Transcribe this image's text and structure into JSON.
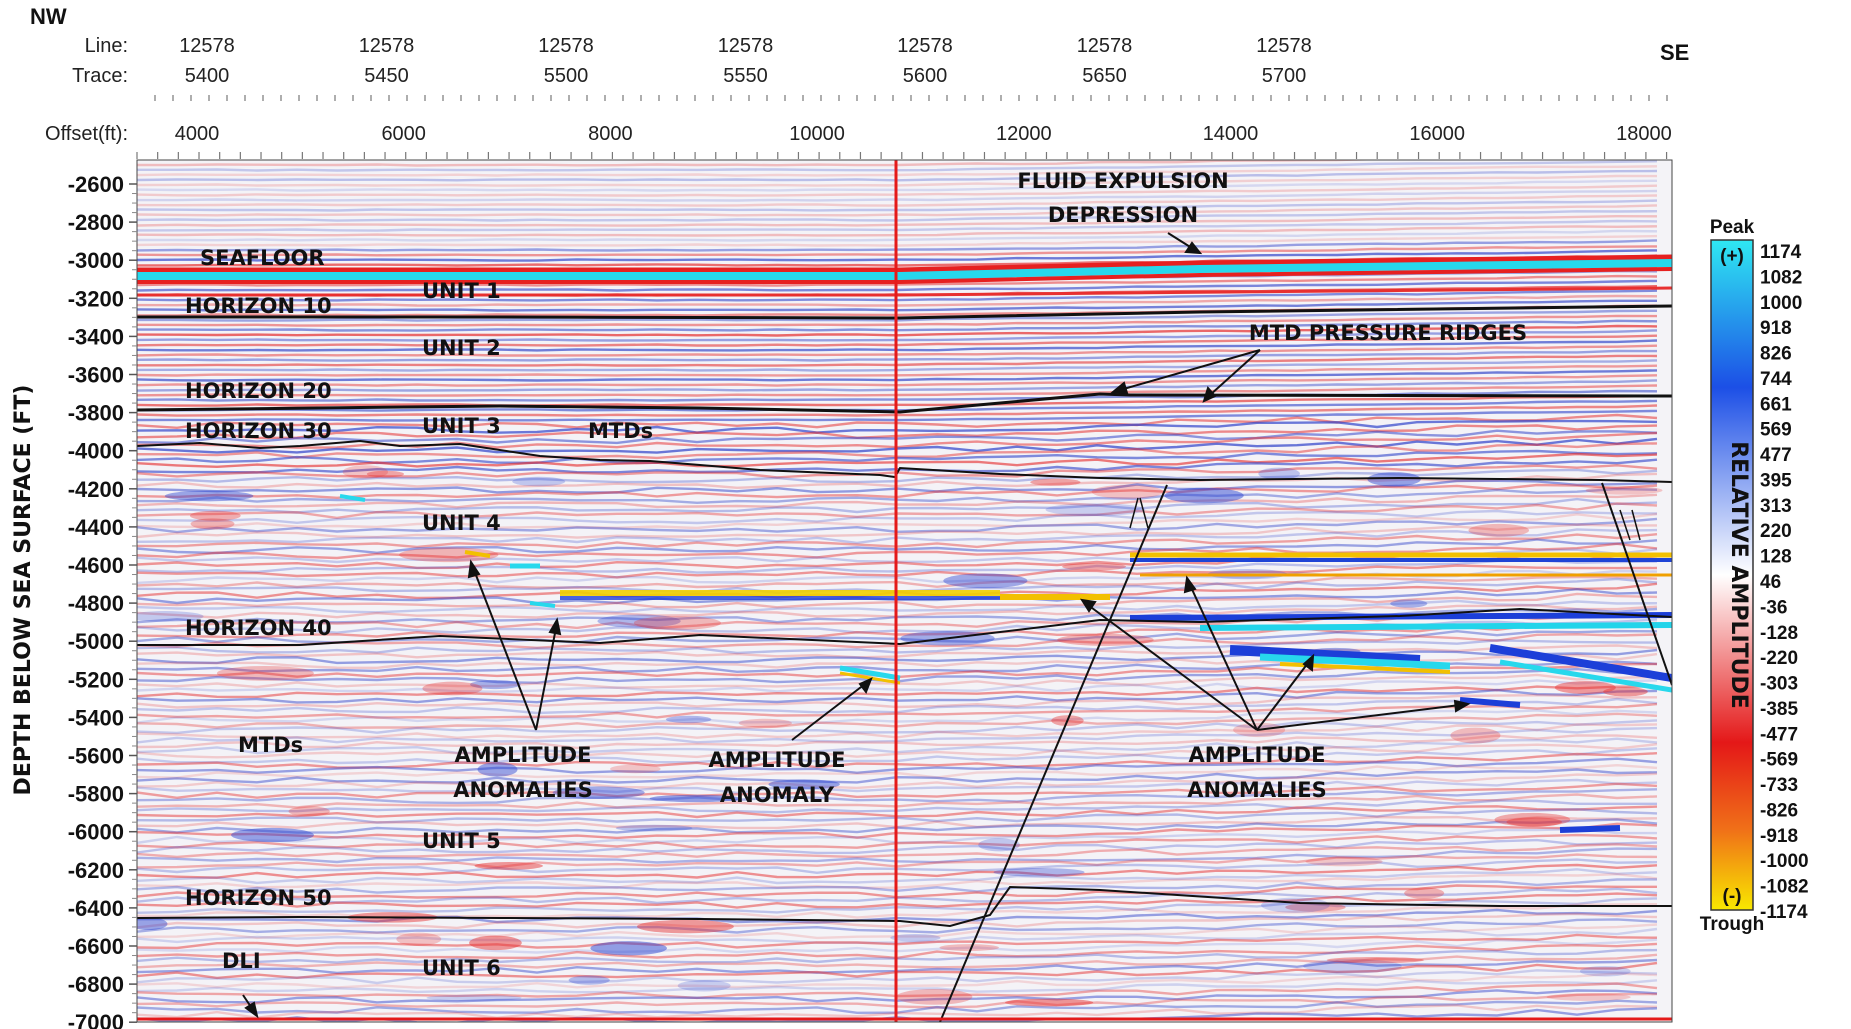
{
  "direction": {
    "left": "NW",
    "right": "SE"
  },
  "header": {
    "line_label": "Line:",
    "trace_label": "Trace:",
    "offset_label": "Offset(ft):",
    "traces": [
      {
        "line": "12578",
        "trace": "5400"
      },
      {
        "line": "12578",
        "trace": "5450"
      },
      {
        "line": "12578",
        "trace": "5500"
      },
      {
        "line": "12578",
        "trace": "5550"
      },
      {
        "line": "12578",
        "trace": "5600"
      },
      {
        "line": "12578",
        "trace": "5650"
      },
      {
        "line": "12578",
        "trace": "5700"
      }
    ],
    "offsets": [
      "4000",
      "6000",
      "8000",
      "10000",
      "12000",
      "14000",
      "16000",
      "18000"
    ]
  },
  "y_axis": {
    "label": "DEPTH BELOW SEA SURFACE (FT)",
    "ticks": [
      "-2600",
      "-2800",
      "-3000",
      "-3200",
      "-3400",
      "-3600",
      "-3800",
      "-4000",
      "-4200",
      "-4400",
      "-4600",
      "-4800",
      "-5000",
      "-5200",
      "-5400",
      "-5600",
      "-5800",
      "-6000",
      "-6200",
      "-6400",
      "-6600",
      "-6800",
      "-7000"
    ]
  },
  "labels": {
    "seafloor": "SEAFLOOR",
    "horizon10": "HORIZON 10",
    "horizon20": "HORIZON 20",
    "horizon30": "HORIZON 30",
    "horizon40": "HORIZON 40",
    "horizon50": "HORIZON 50",
    "unit1": "UNIT 1",
    "unit2": "UNIT 2",
    "unit3": "UNIT 3",
    "unit4": "UNIT 4",
    "unit5": "UNIT 5",
    "unit6": "UNIT 6",
    "mtds1": "MTDs",
    "mtds2": "MTDs",
    "dli": "DLI",
    "fluid1": "FLUID EXPULSION",
    "fluid2": "DEPRESSION",
    "mtd_ridges": "MTD PRESSURE RIDGES",
    "amp_a1": "AMPLITUDE",
    "amp_a2": "ANOMALIES",
    "amp_b1": "AMPLITUDE",
    "amp_b2": "ANOMALY",
    "amp_c1": "AMPLITUDE",
    "amp_c2": "ANOMALIES"
  },
  "colorbar": {
    "title": "RELATIVE AMPLITUDE",
    "peak": "Peak",
    "trough": "Trough",
    "plus": "(+)",
    "minus": "(-)",
    "values": [
      "1174",
      "1082",
      "1000",
      "918",
      "826",
      "744",
      "661",
      "569",
      "477",
      "395",
      "313",
      "220",
      "128",
      "46",
      "-36",
      "-128",
      "-220",
      "-303",
      "-385",
      "-477",
      "-569",
      "-733",
      "-826",
      "-918",
      "-1000",
      "-1082",
      "-1174"
    ],
    "colors": [
      "#2ee6f0",
      "#1a5cf0",
      "#ffffff",
      "#e82020",
      "#f5e000"
    ]
  },
  "colors": {
    "marker_line": "#e41a1a",
    "horizon": "#111111"
  }
}
